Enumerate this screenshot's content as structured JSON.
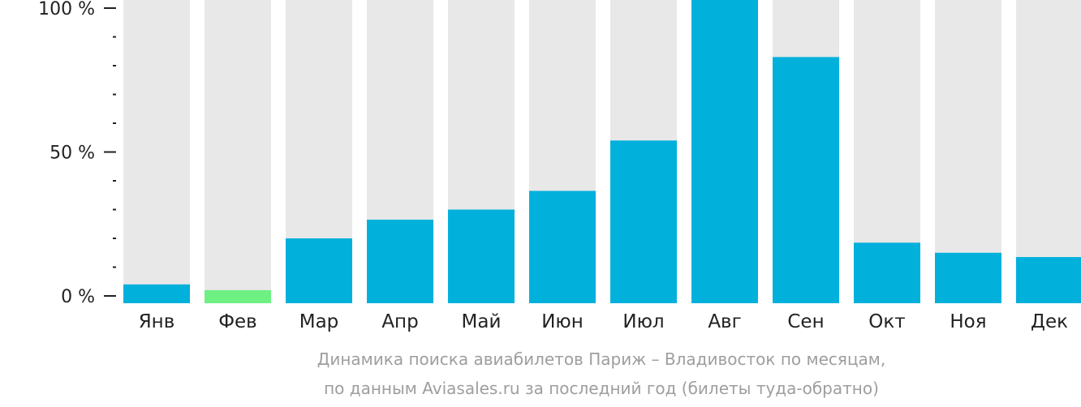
{
  "chart_data": {
    "type": "bar",
    "categories": [
      "Янв",
      "Фев",
      "Мар",
      "Апр",
      "Май",
      "Июн",
      "Июл",
      "Авг",
      "Сен",
      "Окт",
      "Ноя",
      "Дек"
    ],
    "values": [
      4,
      2,
      20,
      26.5,
      30,
      36.5,
      54,
      105,
      83,
      18.5,
      15,
      13.5
    ],
    "ylim": [
      0,
      100
    ],
    "yticks": [
      "0 %",
      "50 %",
      "100 %"
    ],
    "grid": false,
    "colors": {
      "bar": "#02b0dc",
      "lowest": "#6ef082",
      "track": "#e8e8e8"
    }
  },
  "caption": {
    "line1": "Динамика поиска авиабилетов Париж – Владивосток по месяцам,",
    "line2": "по данным Aviasales.ru за последний год (билеты туда-обратно)"
  }
}
